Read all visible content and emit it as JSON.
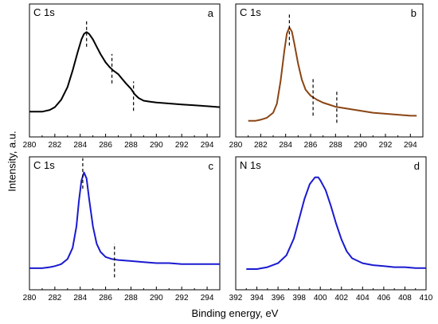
{
  "figure": {
    "xlabel": "Binding energy, eV",
    "ylabel": "Intensity, a.u."
  },
  "chart_data": [
    {
      "type": "line",
      "panel": "a",
      "title": "C 1s",
      "xlim": [
        280,
        295
      ],
      "xticks": [
        280,
        282,
        284,
        286,
        288,
        290,
        292,
        294
      ],
      "ylim": [
        0,
        1
      ],
      "color": "#000000",
      "series": [
        {
          "x": [
            280,
            281,
            281.6,
            282,
            282.5,
            283,
            283.4,
            283.8,
            284.1,
            284.3,
            284.5,
            284.7,
            285,
            285.3,
            285.6,
            286,
            286.3,
            286.6,
            287,
            287.3,
            287.6,
            288,
            288.3,
            288.6,
            289,
            289.5,
            290,
            291,
            292,
            293,
            294,
            295
          ],
          "y": [
            0.11,
            0.11,
            0.13,
            0.16,
            0.24,
            0.38,
            0.56,
            0.76,
            0.9,
            0.96,
            0.98,
            0.96,
            0.9,
            0.82,
            0.74,
            0.65,
            0.6,
            0.56,
            0.52,
            0.47,
            0.42,
            0.36,
            0.3,
            0.26,
            0.23,
            0.22,
            0.21,
            0.2,
            0.19,
            0.18,
            0.17,
            0.16
          ]
        }
      ],
      "dashed_markers": [
        {
          "x": 284.5,
          "y0": 0.82,
          "y1": 1.12
        },
        {
          "x": 286.5,
          "y0": 0.42,
          "y1": 0.74
        },
        {
          "x": 288.2,
          "y0": 0.12,
          "y1": 0.44
        }
      ]
    },
    {
      "type": "line",
      "panel": "b",
      "title": "C 1s",
      "xlim": [
        280,
        295
      ],
      "xticks": [
        280,
        282,
        284,
        286,
        288,
        290,
        292,
        294
      ],
      "ylim": [
        0,
        1
      ],
      "color": "#8B4513",
      "series": [
        {
          "x": [
            281,
            281.6,
            282,
            282.5,
            283,
            283.3,
            283.6,
            283.9,
            284.1,
            284.3,
            284.5,
            284.7,
            285,
            285.3,
            285.6,
            286,
            286.5,
            287,
            287.5,
            288,
            289,
            290,
            291,
            292,
            293,
            294,
            294.5
          ],
          "y": [
            0.05,
            0.05,
            0.06,
            0.08,
            0.13,
            0.22,
            0.45,
            0.75,
            0.92,
            0.98,
            0.94,
            0.82,
            0.62,
            0.46,
            0.36,
            0.3,
            0.26,
            0.23,
            0.21,
            0.19,
            0.17,
            0.15,
            0.13,
            0.12,
            0.11,
            0.1,
            0.1
          ]
        }
      ],
      "dashed_markers": [
        {
          "x": 284.3,
          "y0": 0.8,
          "y1": 1.12
        },
        {
          "x": 286.2,
          "y0": 0.1,
          "y1": 0.48
        },
        {
          "x": 288.1,
          "y0": 0.03,
          "y1": 0.34
        }
      ]
    },
    {
      "type": "line",
      "panel": "c",
      "title": "C 1s",
      "xlim": [
        280,
        295
      ],
      "xticks": [
        280,
        282,
        284,
        286,
        288,
        290,
        292,
        294
      ],
      "ylim": [
        0,
        1
      ],
      "color": "#1a1ad0",
      "series": [
        {
          "x": [
            280,
            281,
            281.6,
            282,
            282.5,
            283,
            283.4,
            283.7,
            283.9,
            284.1,
            284.3,
            284.5,
            284.7,
            285,
            285.3,
            285.6,
            286,
            286.5,
            287,
            288,
            289,
            290,
            291,
            292,
            293,
            294,
            295
          ],
          "y": [
            0.04,
            0.04,
            0.05,
            0.06,
            0.08,
            0.13,
            0.24,
            0.45,
            0.7,
            0.9,
            0.98,
            0.92,
            0.72,
            0.45,
            0.28,
            0.2,
            0.15,
            0.13,
            0.12,
            0.11,
            0.1,
            0.09,
            0.09,
            0.08,
            0.08,
            0.08,
            0.08
          ]
        }
      ],
      "dashed_markers": [
        {
          "x": 284.2,
          "y0": 0.82,
          "y1": 1.12
        },
        {
          "x": 286.7,
          "y0": -0.05,
          "y1": 0.28
        }
      ]
    },
    {
      "type": "line",
      "panel": "d",
      "title": "N 1s",
      "xlim": [
        392,
        410
      ],
      "xticks": [
        392,
        394,
        396,
        398,
        400,
        402,
        404,
        406,
        408,
        410
      ],
      "ylim": [
        0,
        1
      ],
      "color": "#1a1ad0",
      "series": [
        {
          "x": [
            393,
            394,
            395,
            396,
            396.8,
            397.5,
            398,
            398.5,
            399,
            399.5,
            399.8,
            400,
            400.5,
            401,
            401.5,
            402,
            402.5,
            403,
            404,
            405,
            406,
            407,
            408,
            409,
            410
          ],
          "y": [
            0.04,
            0.04,
            0.06,
            0.1,
            0.18,
            0.35,
            0.55,
            0.75,
            0.9,
            0.97,
            0.97,
            0.94,
            0.84,
            0.68,
            0.5,
            0.34,
            0.22,
            0.15,
            0.1,
            0.08,
            0.07,
            0.06,
            0.06,
            0.05,
            0.05
          ]
        }
      ],
      "dashed_markers": []
    }
  ]
}
